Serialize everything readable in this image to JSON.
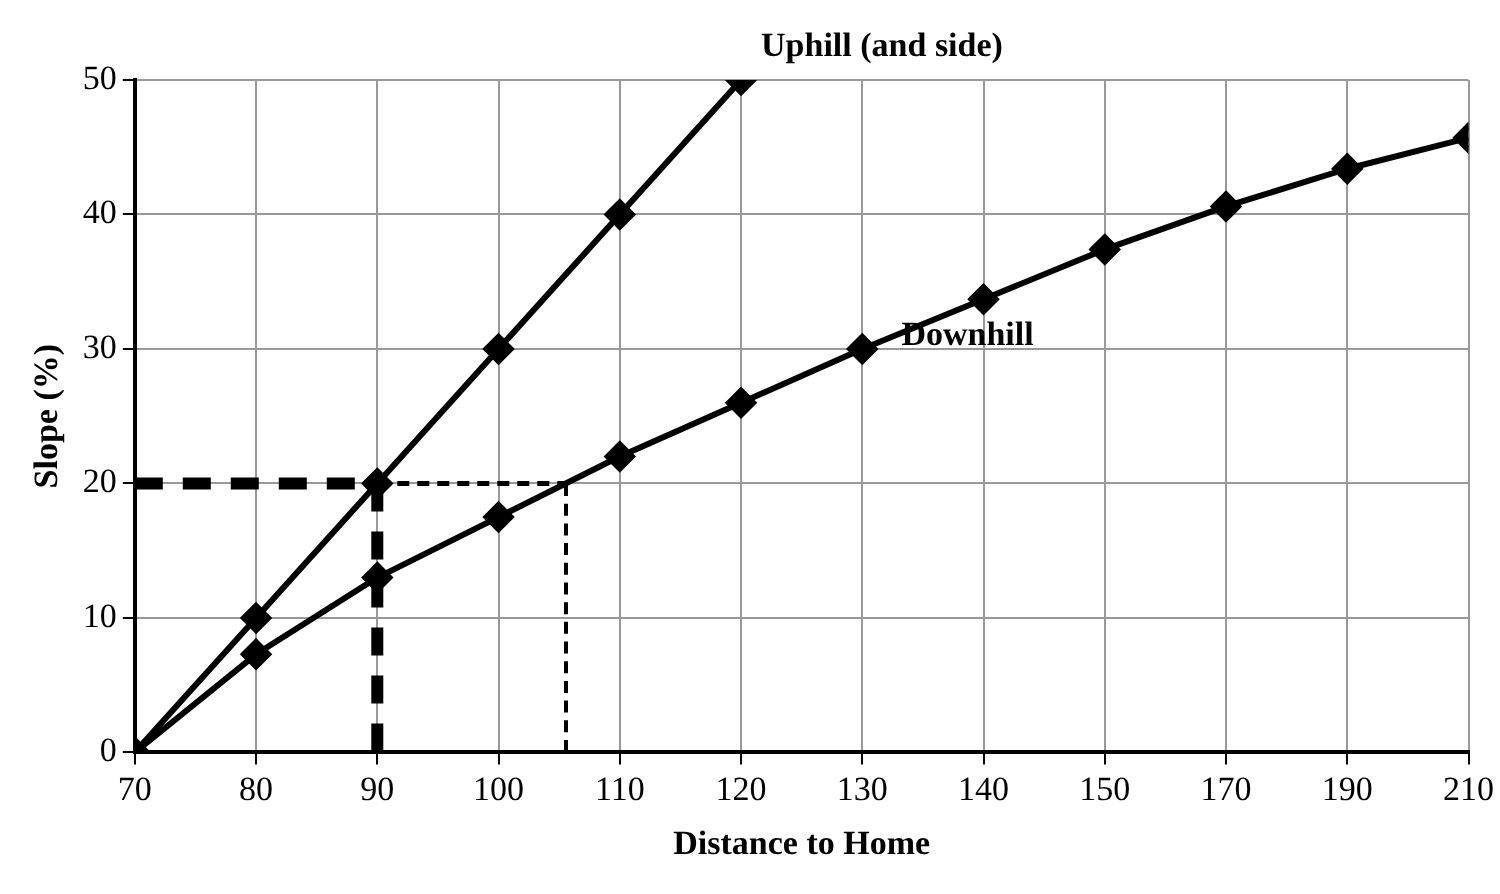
{
  "chart_data": {
    "type": "line",
    "xlabel": "Distance to Home",
    "ylabel": "Slope (%)",
    "categories": [
      "70",
      "80",
      "90",
      "100",
      "110",
      "120",
      "130",
      "140",
      "150",
      "170",
      "190",
      "210"
    ],
    "series": [
      {
        "name": "Uphill (and side)",
        "color": "#000000",
        "values": [
          0,
          10,
          20,
          30,
          40,
          50,
          null,
          null,
          null,
          null,
          null,
          null
        ]
      },
      {
        "name": "Downhill",
        "color": "#000000",
        "values": [
          0,
          7.3,
          13,
          17.5,
          22,
          26,
          30,
          33.7,
          37.4,
          40.6,
          43.4,
          45.7
        ]
      }
    ],
    "ref_lines": [
      {
        "axis": "y",
        "value": 20,
        "color": "#000000",
        "line_style": "dashed"
      },
      {
        "axis": "x",
        "value": "90",
        "color": "#000000",
        "line_style": "dashed"
      },
      {
        "axis": "y",
        "value": 20,
        "color": "#000000",
        "line_style": "dashed"
      }
    ],
    "ylim": [
      0,
      50
    ],
    "yticks": [
      0,
      10,
      20,
      30,
      40,
      50
    ],
    "grid": true,
    "legend": false,
    "marker": "diamond",
    "line_style": "solid"
  }
}
